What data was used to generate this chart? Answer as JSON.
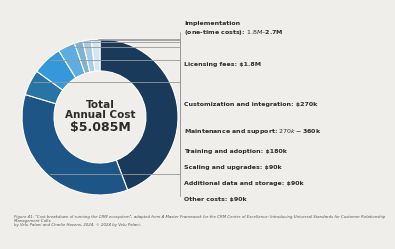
{
  "title_line1": "Total",
  "title_line2": "Annual Cost",
  "title_line3": "$5.085M",
  "segments": [
    {
      "label": "Implementation\n(one-time costs): $1.8M–$2.7M",
      "value": 2.25,
      "color": "#1a3a5c"
    },
    {
      "label": "Licensing fees: $1.8M",
      "value": 1.8,
      "color": "#1e5587"
    },
    {
      "label": "Customization and integration: $270k",
      "value": 0.27,
      "color": "#2874a6"
    },
    {
      "label": "Maintenance and support: $270k-$360k",
      "value": 0.315,
      "color": "#3498db"
    },
    {
      "label": "Training and adoption: $180k",
      "value": 0.18,
      "color": "#5dade2"
    },
    {
      "label": "Scaling and upgrades: $90k",
      "value": 0.09,
      "color": "#7fb3d3"
    },
    {
      "label": "Additional data and storage: $90k",
      "value": 0.09,
      "color": "#a9cce3"
    },
    {
      "label": "Other costs: $90k",
      "value": 0.09,
      "color": "#d0e8f5"
    }
  ],
  "bg_color": "#f0eeea",
  "center_text_color": "#2c2c2c",
  "label_color": "#2c2c2c",
  "line_color": "#999999",
  "caption_line1": "Figure 41: \"Cost breakdown of running the CRM ecosystem\", adapted from A Master Framework for the CRM Center of Excellence: Introducing Universal Standards for Customer Relationship",
  "caption_line2": "Management CoEs.",
  "caption_line3": "by Velu Palani and Charlie Havens, 2024. © 2024 by Velu Palani."
}
